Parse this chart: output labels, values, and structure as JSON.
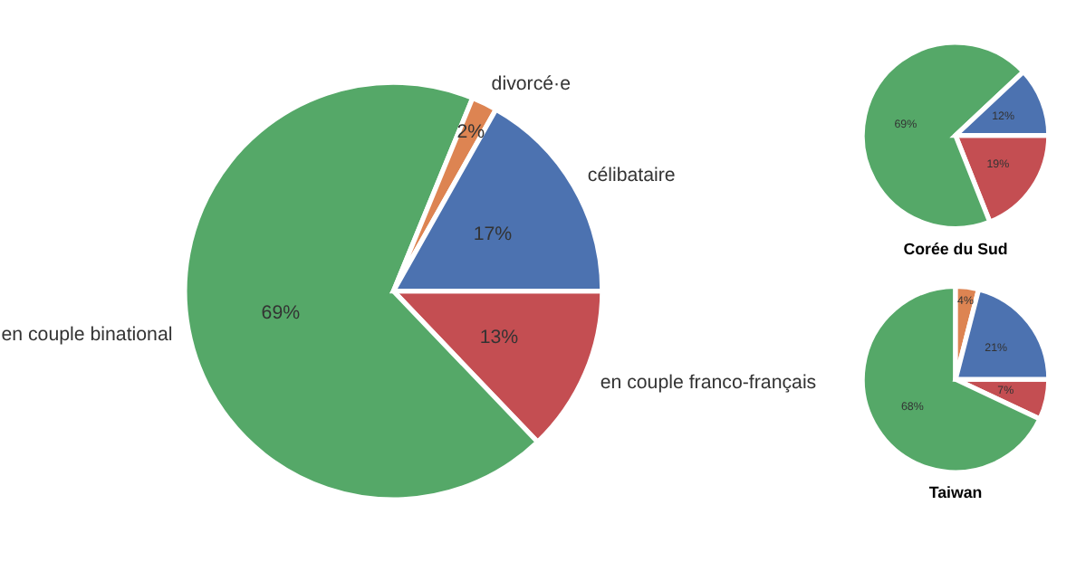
{
  "chart_data": [
    {
      "type": "pie",
      "categories": [
        "en couple franco-français",
        "en couple binational",
        "divorcé·e",
        "célibataire"
      ],
      "values": [
        13,
        69,
        2,
        17
      ],
      "value_labels": [
        "13%",
        "69%",
        "2%",
        "17%"
      ],
      "colors": [
        "#c44e52",
        "#55a868",
        "#dd8452",
        "#4c72b0"
      ]
    },
    {
      "type": "pie",
      "title": "Corée du Sud",
      "categories": [
        null,
        null,
        null
      ],
      "values": [
        19,
        69,
        12
      ],
      "value_labels": [
        "19%",
        "69%",
        "12%"
      ],
      "colors": [
        "#c44e52",
        "#55a868",
        "#4c72b0"
      ]
    },
    {
      "type": "pie",
      "title": "Taiwan",
      "categories": [
        null,
        null,
        null,
        null
      ],
      "values": [
        7,
        68,
        4,
        21
      ],
      "value_labels": [
        "7%",
        "68%",
        "4%",
        "21%"
      ],
      "colors": [
        "#c44e52",
        "#55a868",
        "#dd8452",
        "#4c72b0"
      ]
    }
  ]
}
